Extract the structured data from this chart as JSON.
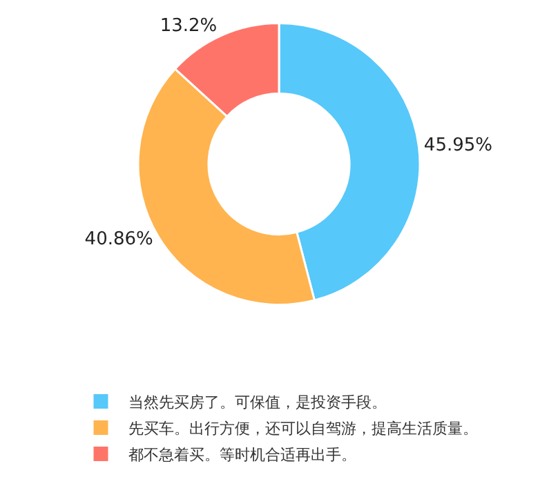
{
  "chart_data": {
    "type": "donut",
    "categories": [
      "当然先买房了。可保值，是投资手段。",
      "先买车。出行方便，还可以自驾游，提高生活质量。",
      "都不急着买。等时机合适再出手。"
    ],
    "values": [
      45.95,
      40.86,
      13.2
    ],
    "colors": [
      "#56c8fa",
      "#ffb44f",
      "#ff7469"
    ],
    "value_labels": [
      "45.95%",
      "40.86%",
      "13.2%"
    ],
    "legend": "bottom"
  }
}
